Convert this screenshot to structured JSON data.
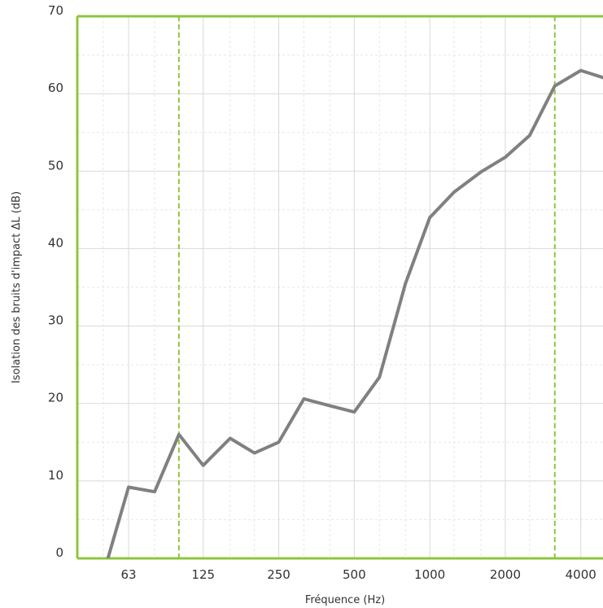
{
  "chart_data": {
    "type": "line",
    "xlabel": "Fréquence (Hz)",
    "ylabel": "Isolation des bruits d'impact ΔL (dB)",
    "x_scale": "log",
    "x_ticks": [
      {
        "value": 63,
        "label": "63"
      },
      {
        "value": 125,
        "label": "125"
      },
      {
        "value": 250,
        "label": "250"
      },
      {
        "value": 500,
        "label": "500"
      },
      {
        "value": 1000,
        "label": "1000"
      },
      {
        "value": 2000,
        "label": "2000"
      },
      {
        "value": 4000,
        "label": "4000"
      }
    ],
    "y_ticks": [
      {
        "value": 0,
        "label": "0"
      },
      {
        "value": 10,
        "label": "10"
      },
      {
        "value": 20,
        "label": "20"
      },
      {
        "value": 30,
        "label": "30"
      },
      {
        "value": 40,
        "label": "40"
      },
      {
        "value": 50,
        "label": "50"
      },
      {
        "value": 60,
        "label": "60"
      },
      {
        "value": 70,
        "label": "70"
      }
    ],
    "ylim": [
      0,
      70
    ],
    "grid": true,
    "reference_lines_x": [
      100,
      3150
    ],
    "colors": {
      "line": "#808080",
      "frame": "#8dc63f",
      "reference": "#8dc63f",
      "grid": "#d9d9d9",
      "grid_minor": "#e6e6e6"
    },
    "series": [
      {
        "x": [
          50,
          63,
          80,
          100,
          125,
          160,
          200,
          250,
          315,
          400,
          500,
          630,
          800,
          1000,
          1250,
          1600,
          2000,
          2500,
          3150,
          4000,
          5000
        ],
        "y": [
          -2,
          9.2,
          8.6,
          16,
          12,
          15.5,
          13.6,
          15,
          20.6,
          19.7,
          18.9,
          23.4,
          35.5,
          44,
          47.3,
          49.9,
          51.8,
          54.6,
          61,
          63,
          62
        ]
      }
    ]
  }
}
